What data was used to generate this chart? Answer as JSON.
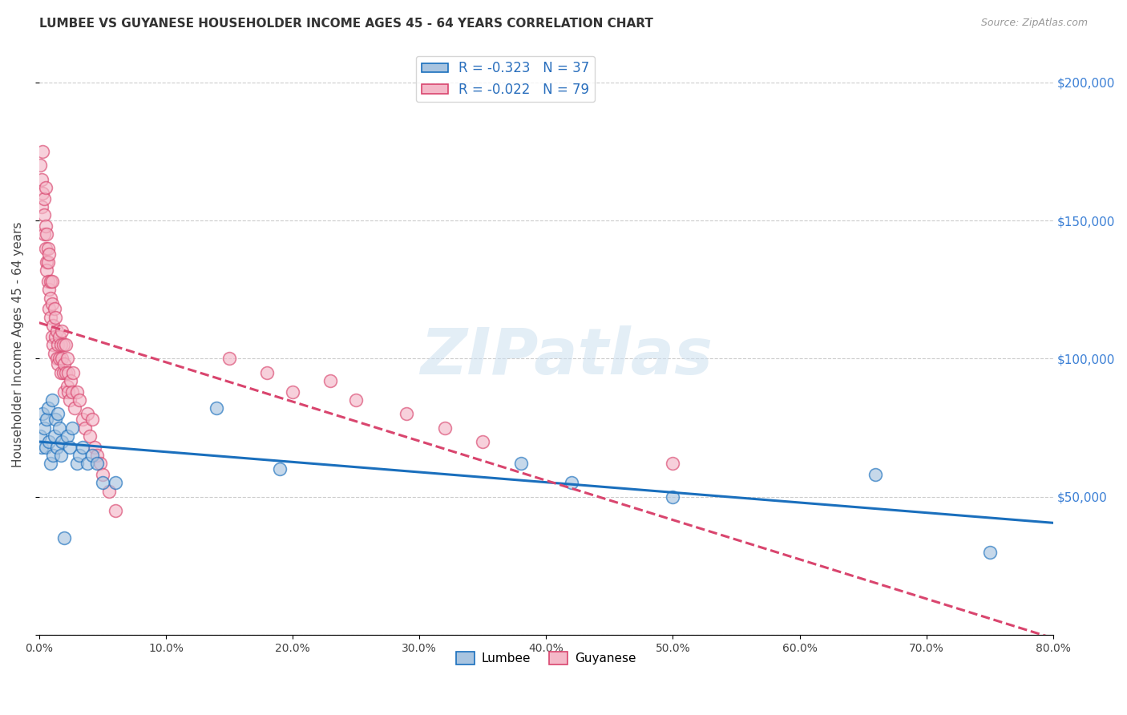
{
  "title": "LUMBEE VS GUYANESE HOUSEHOLDER INCOME AGES 45 - 64 YEARS CORRELATION CHART",
  "source": "Source: ZipAtlas.com",
  "ylabel": "Householder Income Ages 45 - 64 years",
  "legend_lumbee": "Lumbee",
  "legend_guyanese": "Guyanese",
  "lumbee_R": "-0.323",
  "lumbee_N": "37",
  "guyanese_R": "-0.022",
  "guyanese_N": "79",
  "lumbee_color": "#a8c4e0",
  "guyanese_color": "#f4b8c8",
  "lumbee_line_color": "#1a6fbd",
  "guyanese_line_color": "#d9456e",
  "watermark": "ZIPatlas",
  "xlim": [
    0.0,
    0.8
  ],
  "ylim": [
    0,
    210000
  ],
  "yticks": [
    0,
    50000,
    100000,
    150000,
    200000
  ],
  "lumbee_x": [
    0.001,
    0.002,
    0.003,
    0.004,
    0.005,
    0.006,
    0.007,
    0.008,
    0.009,
    0.01,
    0.011,
    0.012,
    0.013,
    0.014,
    0.015,
    0.016,
    0.017,
    0.018,
    0.02,
    0.022,
    0.024,
    0.026,
    0.03,
    0.032,
    0.034,
    0.038,
    0.042,
    0.046,
    0.05,
    0.06,
    0.14,
    0.19,
    0.38,
    0.42,
    0.5,
    0.66,
    0.75
  ],
  "lumbee_y": [
    72000,
    68000,
    80000,
    75000,
    68000,
    78000,
    82000,
    70000,
    62000,
    85000,
    65000,
    72000,
    78000,
    68000,
    80000,
    75000,
    65000,
    70000,
    35000,
    72000,
    68000,
    75000,
    62000,
    65000,
    68000,
    62000,
    65000,
    62000,
    55000,
    55000,
    82000,
    60000,
    62000,
    55000,
    50000,
    58000,
    30000
  ],
  "guyanese_x": [
    0.001,
    0.002,
    0.002,
    0.003,
    0.003,
    0.004,
    0.004,
    0.004,
    0.005,
    0.005,
    0.005,
    0.006,
    0.006,
    0.006,
    0.007,
    0.007,
    0.007,
    0.008,
    0.008,
    0.008,
    0.009,
    0.009,
    0.009,
    0.01,
    0.01,
    0.01,
    0.011,
    0.011,
    0.012,
    0.012,
    0.013,
    0.013,
    0.014,
    0.014,
    0.015,
    0.015,
    0.016,
    0.016,
    0.017,
    0.017,
    0.018,
    0.018,
    0.019,
    0.019,
    0.02,
    0.02,
    0.021,
    0.021,
    0.022,
    0.022,
    0.023,
    0.023,
    0.024,
    0.025,
    0.026,
    0.027,
    0.028,
    0.03,
    0.032,
    0.034,
    0.036,
    0.038,
    0.04,
    0.042,
    0.044,
    0.046,
    0.048,
    0.05,
    0.055,
    0.06,
    0.15,
    0.18,
    0.2,
    0.23,
    0.25,
    0.29,
    0.32,
    0.35,
    0.5
  ],
  "guyanese_y": [
    170000,
    165000,
    155000,
    175000,
    160000,
    152000,
    145000,
    158000,
    148000,
    140000,
    162000,
    135000,
    145000,
    132000,
    140000,
    128000,
    135000,
    125000,
    138000,
    118000,
    128000,
    122000,
    115000,
    120000,
    108000,
    128000,
    112000,
    105000,
    118000,
    102000,
    108000,
    115000,
    100000,
    110000,
    105000,
    98000,
    108000,
    100000,
    95000,
    105000,
    100000,
    110000,
    95000,
    105000,
    98000,
    88000,
    95000,
    105000,
    90000,
    100000,
    88000,
    95000,
    85000,
    92000,
    88000,
    95000,
    82000,
    88000,
    85000,
    78000,
    75000,
    80000,
    72000,
    78000,
    68000,
    65000,
    62000,
    58000,
    52000,
    45000,
    100000,
    95000,
    88000,
    92000,
    85000,
    80000,
    75000,
    70000,
    62000
  ]
}
